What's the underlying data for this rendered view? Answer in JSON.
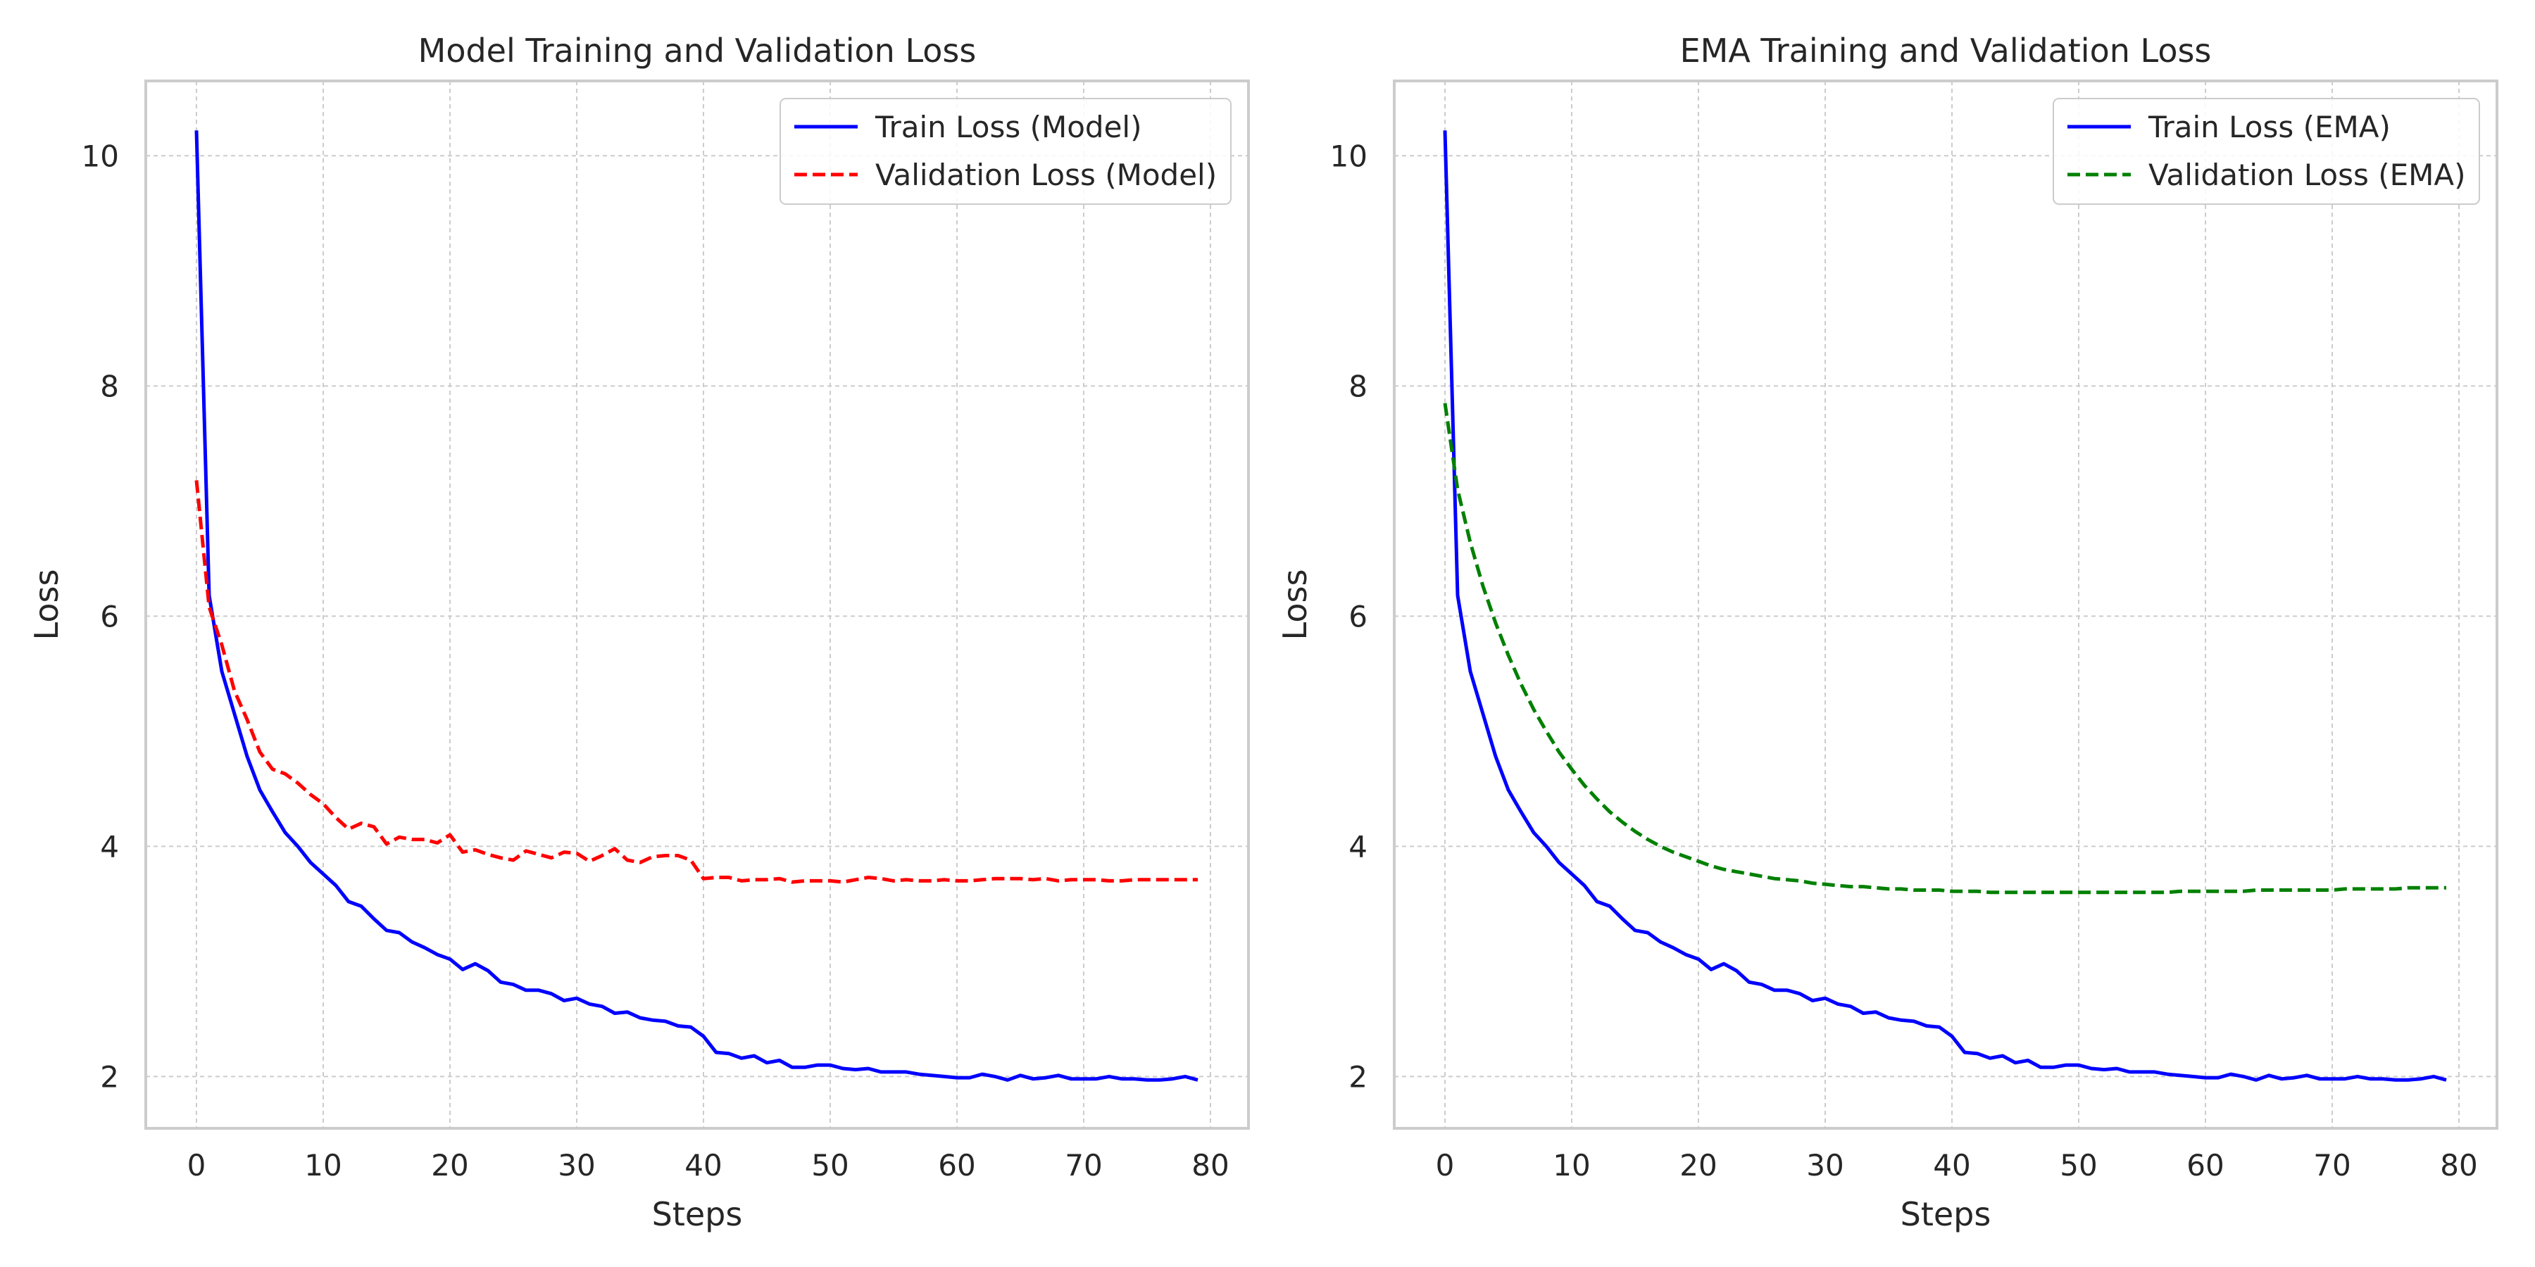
{
  "chart_data": [
    {
      "type": "line",
      "title": "Model Training and Validation Loss",
      "xlabel": "Steps",
      "ylabel": "Loss",
      "xlim": [
        -4,
        83
      ],
      "ylim": [
        1.55,
        10.65
      ],
      "xticks": [
        0,
        10,
        20,
        30,
        40,
        50,
        60,
        70,
        80
      ],
      "yticks": [
        2,
        4,
        6,
        8,
        10
      ],
      "grid": true,
      "legend_position": "top-right",
      "series": [
        {
          "name": "Train Loss (Model)",
          "color": "#0000ff",
          "style": "solid",
          "x_start": 0,
          "values": [
            10.22,
            6.18,
            5.52,
            5.15,
            4.78,
            4.49,
            4.3,
            4.12,
            4.0,
            3.86,
            3.76,
            3.66,
            3.52,
            3.48,
            3.37,
            3.27,
            3.25,
            3.17,
            3.12,
            3.06,
            3.02,
            2.93,
            2.98,
            2.92,
            2.82,
            2.8,
            2.75,
            2.75,
            2.72,
            2.66,
            2.68,
            2.63,
            2.61,
            2.55,
            2.56,
            2.51,
            2.49,
            2.48,
            2.44,
            2.43,
            2.35,
            2.21,
            2.2,
            2.16,
            2.18,
            2.12,
            2.14,
            2.08,
            2.08,
            2.1,
            2.1,
            2.07,
            2.06,
            2.07,
            2.04,
            2.04,
            2.04,
            2.02,
            2.01,
            2.0,
            1.99,
            1.99,
            2.02,
            2.0,
            1.97,
            2.01,
            1.98,
            1.99,
            2.01,
            1.98,
            1.98,
            1.98,
            2.0,
            1.98,
            1.98,
            1.97,
            1.97,
            1.98,
            2.0,
            1.97
          ]
        },
        {
          "name": "Validation Loss (Model)",
          "color": "#ff0000",
          "style": "dashed",
          "x_start": 0,
          "values": [
            7.18,
            6.08,
            5.75,
            5.35,
            5.1,
            4.82,
            4.67,
            4.63,
            4.55,
            4.45,
            4.37,
            4.25,
            4.15,
            4.2,
            4.17,
            4.02,
            4.08,
            4.06,
            4.06,
            4.03,
            4.1,
            3.95,
            3.97,
            3.93,
            3.9,
            3.88,
            3.96,
            3.93,
            3.9,
            3.95,
            3.94,
            3.87,
            3.92,
            3.98,
            3.88,
            3.86,
            3.91,
            3.92,
            3.92,
            3.88,
            3.72,
            3.73,
            3.73,
            3.7,
            3.71,
            3.71,
            3.72,
            3.69,
            3.7,
            3.7,
            3.7,
            3.69,
            3.71,
            3.73,
            3.72,
            3.7,
            3.71,
            3.7,
            3.7,
            3.71,
            3.7,
            3.7,
            3.71,
            3.72,
            3.72,
            3.72,
            3.71,
            3.72,
            3.7,
            3.71,
            3.71,
            3.71,
            3.7,
            3.7,
            3.71,
            3.71,
            3.71,
            3.71,
            3.71,
            3.71
          ]
        }
      ]
    },
    {
      "type": "line",
      "title": "EMA Training and Validation Loss",
      "xlabel": "Steps",
      "ylabel": "Loss",
      "xlim": [
        -4,
        83
      ],
      "ylim": [
        1.55,
        10.65
      ],
      "xticks": [
        0,
        10,
        20,
        30,
        40,
        50,
        60,
        70,
        80
      ],
      "yticks": [
        2,
        4,
        6,
        8,
        10
      ],
      "grid": true,
      "legend_position": "top-right",
      "series": [
        {
          "name": "Train Loss (EMA)",
          "color": "#0000ff",
          "style": "solid",
          "x_start": 0,
          "values": [
            10.22,
            6.18,
            5.52,
            5.15,
            4.78,
            4.49,
            4.3,
            4.12,
            4.0,
            3.86,
            3.76,
            3.66,
            3.52,
            3.48,
            3.37,
            3.27,
            3.25,
            3.17,
            3.12,
            3.06,
            3.02,
            2.93,
            2.98,
            2.92,
            2.82,
            2.8,
            2.75,
            2.75,
            2.72,
            2.66,
            2.68,
            2.63,
            2.61,
            2.55,
            2.56,
            2.51,
            2.49,
            2.48,
            2.44,
            2.43,
            2.35,
            2.21,
            2.2,
            2.16,
            2.18,
            2.12,
            2.14,
            2.08,
            2.08,
            2.1,
            2.1,
            2.07,
            2.06,
            2.07,
            2.04,
            2.04,
            2.04,
            2.02,
            2.01,
            2.0,
            1.99,
            1.99,
            2.02,
            2.0,
            1.97,
            2.01,
            1.98,
            1.99,
            2.01,
            1.98,
            1.98,
            1.98,
            2.0,
            1.98,
            1.98,
            1.97,
            1.97,
            1.98,
            2.0,
            1.97
          ]
        },
        {
          "name": "Validation Loss (EMA)",
          "color": "#008000",
          "style": "dashed",
          "x_start": 0,
          "values": [
            7.85,
            7.1,
            6.64,
            6.26,
            5.94,
            5.66,
            5.41,
            5.19,
            5.0,
            4.82,
            4.67,
            4.53,
            4.41,
            4.3,
            4.21,
            4.13,
            4.06,
            4.0,
            3.95,
            3.91,
            3.87,
            3.83,
            3.8,
            3.78,
            3.76,
            3.74,
            3.72,
            3.71,
            3.7,
            3.68,
            3.67,
            3.66,
            3.65,
            3.65,
            3.64,
            3.63,
            3.63,
            3.62,
            3.62,
            3.62,
            3.61,
            3.61,
            3.61,
            3.6,
            3.6,
            3.6,
            3.6,
            3.6,
            3.6,
            3.6,
            3.6,
            3.6,
            3.6,
            3.6,
            3.6,
            3.6,
            3.6,
            3.6,
            3.61,
            3.61,
            3.61,
            3.61,
            3.61,
            3.61,
            3.62,
            3.62,
            3.62,
            3.62,
            3.62,
            3.62,
            3.62,
            3.63,
            3.63,
            3.63,
            3.63,
            3.63,
            3.64,
            3.64,
            3.64,
            3.64
          ]
        }
      ]
    }
  ]
}
